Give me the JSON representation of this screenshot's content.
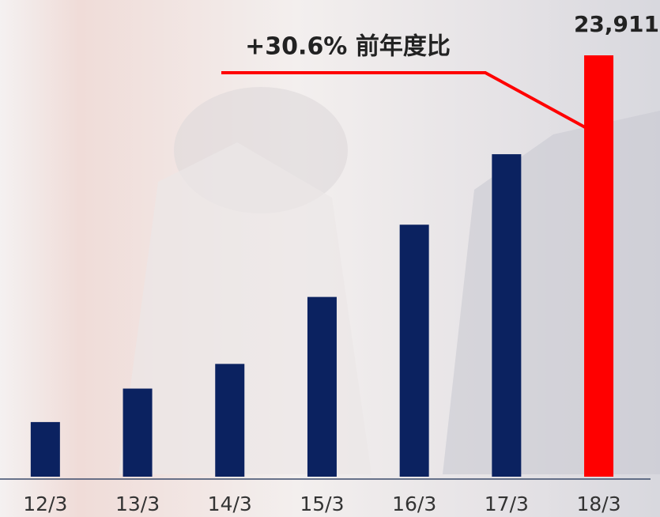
{
  "chart_data": {
    "type": "bar",
    "annotation": "+30.6% 前年度比",
    "categories": [
      "12/3",
      "13/3",
      "14/3",
      "15/3",
      "16/3",
      "17/3",
      "18/3"
    ],
    "values": [
      3100,
      5000,
      6400,
      10200,
      14300,
      18300,
      23911
    ],
    "value_labels": [
      null,
      null,
      null,
      null,
      null,
      null,
      "23,911"
    ],
    "colors": [
      "#0b2260",
      "#0b2260",
      "#0b2260",
      "#0b2260",
      "#0b2260",
      "#0b2260",
      "#ff0000"
    ],
    "ylim": [
      0,
      23911
    ]
  }
}
